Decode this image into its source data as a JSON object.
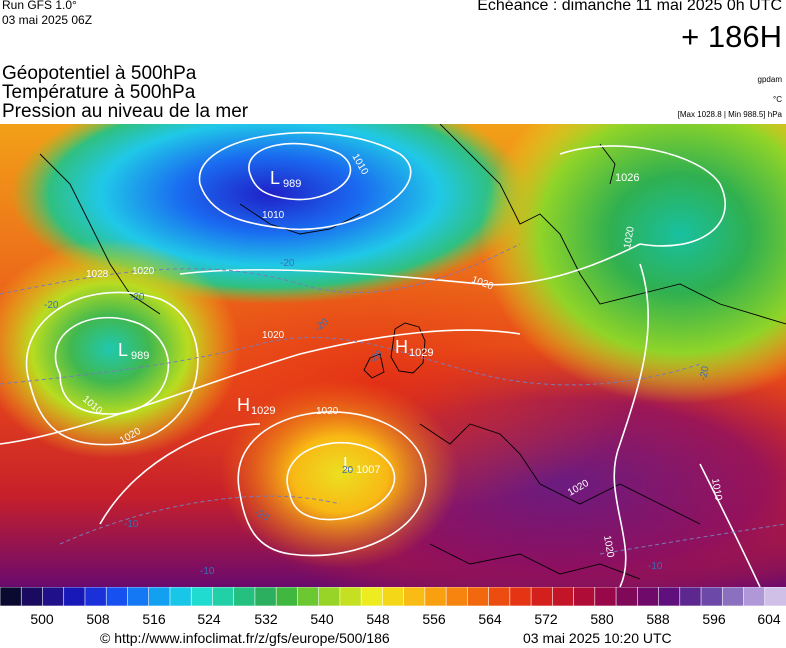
{
  "header": {
    "run": "Run GFS 1.0°",
    "run_date": "03 mai 2025 06Z",
    "echeance": "Echéance : dimanche 11 mai 2025 0h UTC",
    "lead": "+ 186H"
  },
  "titles": {
    "line1": "Géopotentiel à 500hPa",
    "line2": "Température à 500hPa",
    "line3": "Pression au niveau de la mer"
  },
  "units": {
    "geopotential": "gpdam",
    "temperature": "°C",
    "pressure_range": "[Max 1028.8 | Min 988.5] hPa"
  },
  "map": {
    "pressure_centers": [
      {
        "letter": "L",
        "value": "989"
      },
      {
        "letter": "L",
        "value": "989"
      },
      {
        "letter": "H",
        "value": "1029"
      },
      {
        "letter": "H",
        "value": "1029"
      },
      {
        "letter": "L",
        "value": "1007"
      },
      {
        "letter": "",
        "value": "1026"
      }
    ],
    "isobar_labels": [
      "1010",
      "1010",
      "1020",
      "1020",
      "1020",
      "1020",
      "1028",
      "1010",
      "1020",
      "1020",
      "1020",
      "1010",
      "1020"
    ],
    "temperature_labels": [
      "-20",
      "-20",
      "-20",
      "-20",
      "-20",
      "-20",
      "-10",
      "-10",
      "-10",
      "-20",
      "20"
    ]
  },
  "colorbar": {
    "tick_labels": [
      "500",
      "508",
      "516",
      "524",
      "532",
      "540",
      "548",
      "556",
      "564",
      "572",
      "580",
      "588",
      "596",
      "604"
    ],
    "colors": [
      "#0a0a30",
      "#1a0a60",
      "#20108a",
      "#1818b8",
      "#1a30d8",
      "#1650f0",
      "#1478f5",
      "#14a0f0",
      "#18c6e8",
      "#20dcd0",
      "#22d0a8",
      "#24c080",
      "#2cb060",
      "#40b840",
      "#6cc830",
      "#98d428",
      "#c4e020",
      "#ecec20",
      "#f4d818",
      "#f8bc14",
      "#f8a010",
      "#f6840e",
      "#f2680e",
      "#ec4c10",
      "#e43414",
      "#d4201c",
      "#c41428",
      "#b00c38",
      "#980848",
      "#800858",
      "#700a6a",
      "#60107c",
      "#5c2890",
      "#6c48a8",
      "#8c70c0",
      "#b098d8",
      "#d0c0e8"
    ]
  },
  "footer": {
    "url": "© http://www.infoclimat.fr/z/gfs/europe/500/186",
    "generated": "03 mai 2025 10:20 UTC"
  }
}
